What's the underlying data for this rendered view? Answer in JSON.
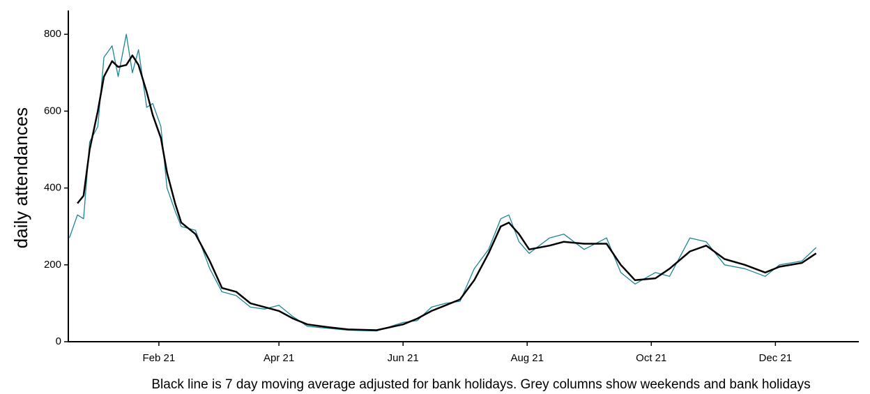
{
  "chart_data": {
    "type": "line",
    "y_label": "daily attendances",
    "caption": "Black line is 7 day moving average adjusted for bank holidays. Grey columns show weekends and bank holidays",
    "x": [
      -12,
      -8,
      -5,
      -2,
      2,
      5,
      9,
      12,
      16,
      19,
      22,
      26,
      29,
      33,
      36,
      40,
      43,
      50,
      57,
      63,
      70,
      77,
      84,
      91,
      98,
      105,
      115,
      125,
      139,
      152,
      159,
      166,
      173,
      180,
      187,
      194,
      200,
      204,
      209,
      214,
      224,
      231,
      241,
      252,
      259,
      266,
      276,
      283,
      293,
      301,
      310,
      320,
      330,
      337,
      348,
      355
    ],
    "series": [
      {
        "color": "#1b8596",
        "width": 1.3,
        "values": [
          270,
          330,
          320,
          520,
          560,
          740,
          770,
          690,
          800,
          700,
          760,
          610,
          620,
          560,
          400,
          340,
          300,
          290,
          190,
          130,
          120,
          90,
          85,
          95,
          65,
          40,
          35,
          30,
          28,
          50,
          55,
          90,
          100,
          105,
          190,
          240,
          320,
          330,
          260,
          230,
          270,
          280,
          240,
          270,
          180,
          150,
          180,
          170,
          270,
          260,
          200,
          190,
          170,
          200,
          210,
          245
        ]
      },
      {
        "color": "#000000",
        "width": 2.5,
        "values": [
          null,
          360,
          380,
          500,
          600,
          690,
          730,
          715,
          720,
          745,
          720,
          650,
          590,
          530,
          440,
          360,
          310,
          280,
          210,
          140,
          130,
          100,
          90,
          80,
          60,
          45,
          38,
          32,
          30,
          45,
          60,
          80,
          95,
          110,
          160,
          230,
          300,
          310,
          280,
          240,
          250,
          260,
          255,
          255,
          200,
          160,
          165,
          190,
          235,
          250,
          215,
          200,
          180,
          195,
          205,
          230
        ]
      }
    ],
    "xlim": [
      -12.5,
      376
    ],
    "xticks": [
      {
        "value": 32,
        "label": "Feb 21"
      },
      {
        "value": 91,
        "label": "Apr 21"
      },
      {
        "value": 152,
        "label": "Jun 21"
      },
      {
        "value": 213,
        "label": "Aug 21"
      },
      {
        "value": 274,
        "label": "Oct 21"
      },
      {
        "value": 335,
        "label": "Dec 21"
      }
    ],
    "ylim": [
      0,
      862
    ],
    "yticks": [
      0,
      200,
      400,
      600,
      800
    ]
  }
}
